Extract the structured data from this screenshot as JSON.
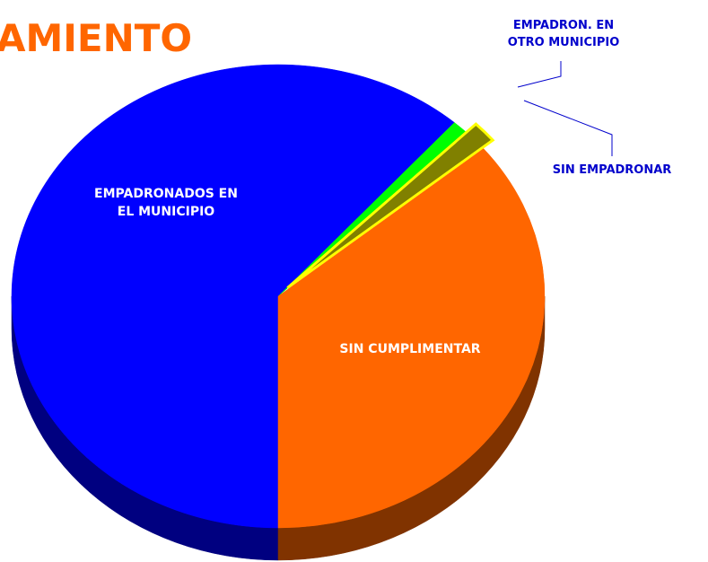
{
  "chart_data": {
    "type": "pie3d",
    "title": "AMIENTO",
    "categories": [
      "EMPADRONADOS EN EL MUNICIPIO",
      "EMPADRON.  EN OTRO MUNICIPIO",
      "SIN EMPADRONAR",
      "SIN CUMPLIMENTAR"
    ],
    "values": [
      61.5,
      1,
      1.5,
      36
    ],
    "colors": [
      "#0000ff",
      "#00ff00",
      "#808000",
      "#ff6600"
    ],
    "side_colors": [
      "#000080",
      "#008000",
      "#606000",
      "#803300"
    ]
  }
}
